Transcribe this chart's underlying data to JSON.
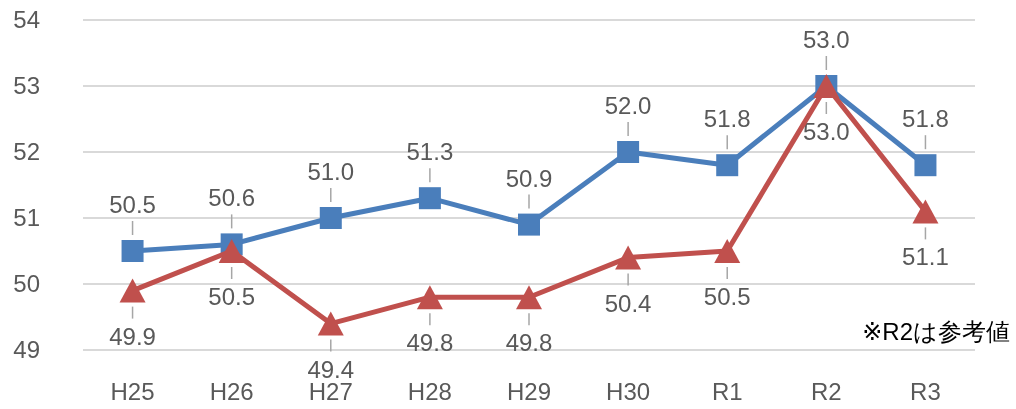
{
  "chart_data": {
    "type": "line",
    "categories": [
      "H25",
      "H26",
      "H27",
      "H28",
      "H29",
      "H30",
      "R1",
      "R2",
      "R3"
    ],
    "series": [
      {
        "color": "#4a7ebb",
        "marker": "square",
        "values": [
          50.5,
          50.6,
          51.0,
          51.3,
          50.9,
          52.0,
          51.8,
          53.0,
          51.8
        ],
        "value_labels": [
          "50.5",
          "50.6",
          "51.0",
          "51.3",
          "50.9",
          "52.0",
          "51.8",
          "53.0",
          "51.8"
        ]
      },
      {
        "color": "#c0504d",
        "marker": "triangle",
        "values": [
          49.9,
          50.5,
          49.4,
          49.8,
          49.8,
          50.4,
          50.5,
          53.0,
          51.1
        ],
        "value_labels": [
          "49.9",
          "50.5",
          "49.4",
          "49.8",
          "49.8",
          "50.4",
          "50.5",
          "53.0",
          "51.1"
        ]
      }
    ],
    "ylim": [
      49,
      54
    ],
    "yticks": [
      49,
      50,
      51,
      52,
      53,
      54
    ],
    "grid": "y",
    "annotations": [
      "※R2は参考値"
    ]
  }
}
